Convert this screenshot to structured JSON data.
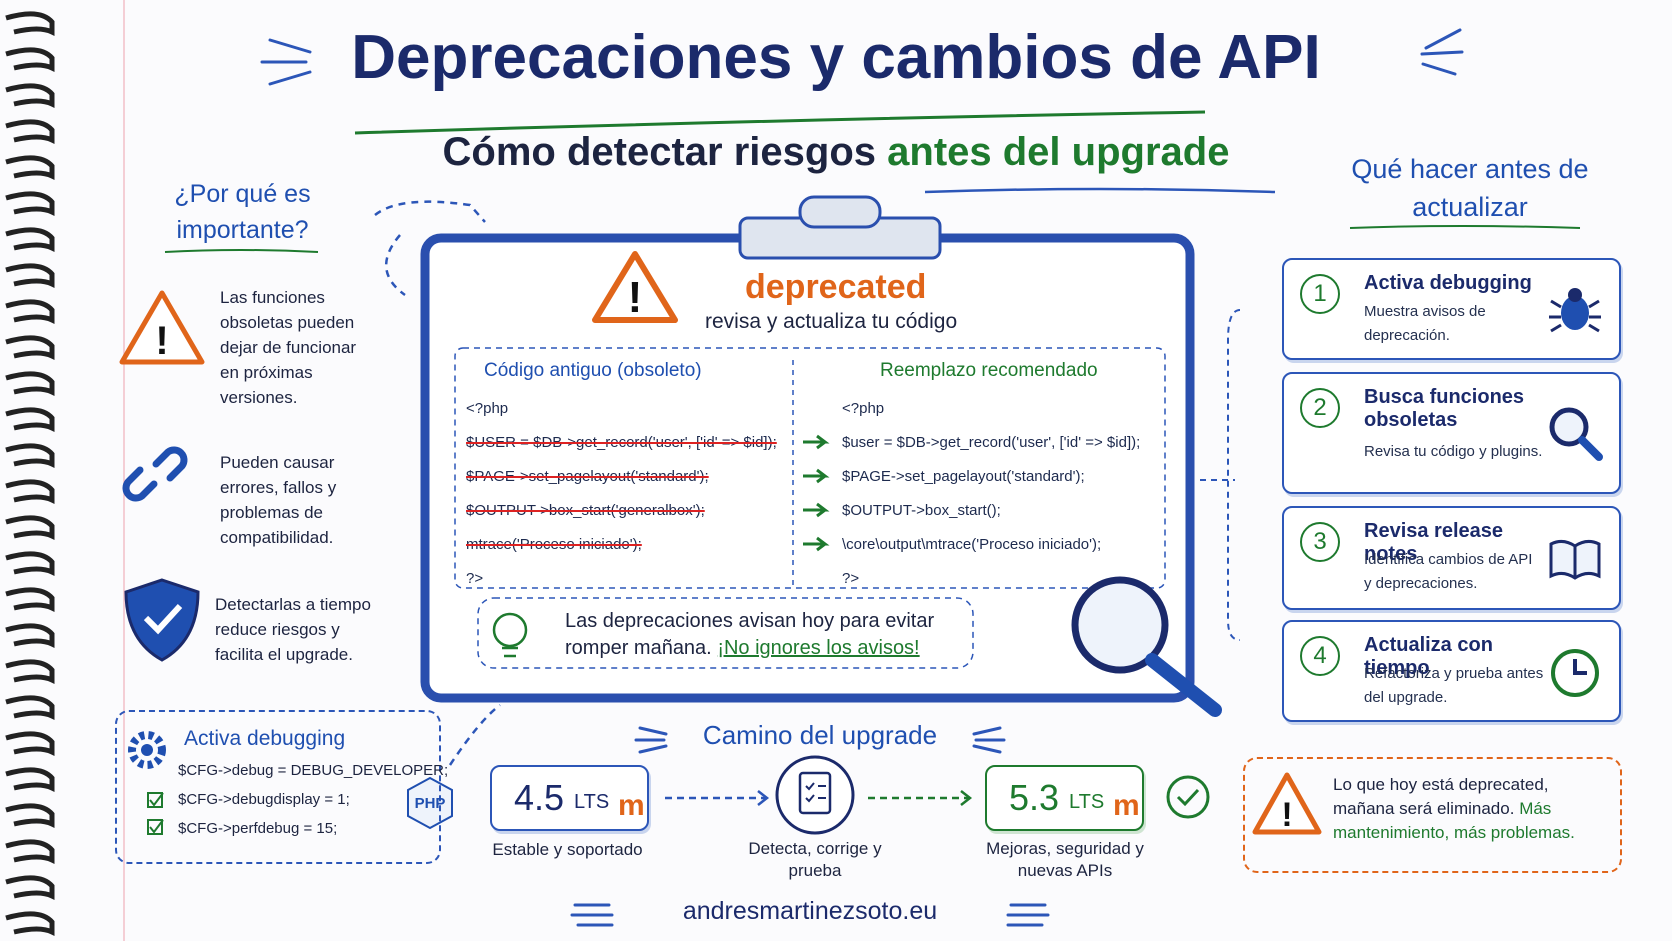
{
  "title": "Deprecaciones y cambios de API",
  "subtitle": {
    "lead": "Cómo detectar riesgos",
    "highlight": "antes del upgrade"
  },
  "why": {
    "heading": "¿Por qué es importante?",
    "items": [
      "Las funciones obsoletas pueden dejar de funcionar en próximas versiones.",
      "Pueden causar errores, fallos y problemas de compatibilidad.",
      "Detectarlas a tiempo reduce riesgos y facilita el upgrade."
    ]
  },
  "clipboard": {
    "badge": "deprecated",
    "caption": "revisa y actualiza tu código",
    "old": {
      "heading": "Código antiguo (obsoleto)",
      "lines": [
        "<?php",
        "$USER = $DB->get_record('user', ['id' => $id]);",
        "$PAGE->set_pagelayout('standard');",
        "$OUTPUT->box_start('generalbox');",
        "mtrace('Proceso iniciado');",
        "?>"
      ]
    },
    "new": {
      "heading": "Reemplazo recomendado",
      "lines": [
        "<?php",
        "$user = $DB->get_record('user', ['id' => $id]);",
        "$PAGE->set_pagelayout('standard');",
        "$OUTPUT->box_start();",
        "\\core\\output\\mtrace('Proceso iniciado');",
        "?>"
      ]
    },
    "tip": {
      "text": "Las deprecaciones avisan hoy para evitar romper mañana.",
      "emphasis": "¡No ignores los avisos!"
    }
  },
  "steps": {
    "heading": "Qué hacer antes de actualizar",
    "items": [
      {
        "number": "1",
        "title": "Activa debugging",
        "text": "Muestra avisos de deprecación."
      },
      {
        "number": "2",
        "title": "Busca funciones obsoletas",
        "text": "Revisa tu código y plugins."
      },
      {
        "number": "3",
        "title": "Revisa release notes",
        "text": "Identifica cambios de API y deprecaciones."
      },
      {
        "number": "4",
        "title": "Actualiza con tiempo",
        "text": "Refactoriza y prueba antes del upgrade."
      }
    ]
  },
  "debug": {
    "heading": "Activa debugging",
    "lines": [
      "$CFG->debug = DEBUG_DEVELOPER;",
      "$CFG->debugdisplay = 1;",
      "$CFG->perfdebug = 15;"
    ],
    "badge": "PHP"
  },
  "path": {
    "heading": "Camino del upgrade",
    "from": {
      "version": "4.5",
      "suffix": "LTS",
      "caption": "Estable y soportado"
    },
    "middle": {
      "caption": "Detecta, corrige y prueba"
    },
    "to": {
      "version": "5.3",
      "suffix": "LTS",
      "caption": "Mejoras, seguridad y nuevas APIs"
    }
  },
  "warning": {
    "text": "Lo que hoy está deprecated, mañana será eliminado.",
    "emphasis": "Más mantenimiento, más problemas."
  },
  "footer": "andresmartinezsoto.eu"
}
